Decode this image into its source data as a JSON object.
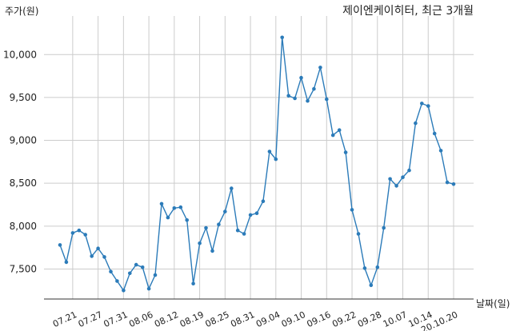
{
  "chart_data": {
    "type": "line",
    "title": "제이엔케이히터, 최근 3개월",
    "ylabel": "주가(원)",
    "xlabel": "날짜(일)",
    "ylim": [
      7150,
      10450
    ],
    "yticks": [
      7500,
      8000,
      8500,
      9000,
      9500,
      10000
    ],
    "ytick_labels": [
      "7,500",
      "8,000",
      "8,500",
      "9,000",
      "9,500",
      "10,000"
    ],
    "grid": true,
    "xtick_labels": [
      "07.21",
      "07.27",
      "07.31",
      "08.06",
      "08.12",
      "08.19",
      "08.25",
      "08.31",
      "09.04",
      "09.10",
      "09.16",
      "09.22",
      "09.28",
      "10.07",
      "10.14",
      "20.10.20"
    ],
    "xtick_positions": [
      2,
      6,
      10,
      14,
      18,
      22,
      26,
      30,
      34,
      38,
      42,
      46,
      50,
      54,
      58,
      62
    ],
    "line_color": "#2b7bb9",
    "values": [
      7780,
      7580,
      7920,
      7950,
      7900,
      7650,
      7740,
      7640,
      7470,
      7360,
      7250,
      7450,
      7550,
      7520,
      7270,
      7430,
      8260,
      8100,
      8210,
      8220,
      8070,
      7330,
      7800,
      7980,
      7710,
      8020,
      8170,
      8440,
      7950,
      7910,
      8130,
      8150,
      8290,
      8870,
      8780,
      10200,
      9520,
      9490,
      9730,
      9460,
      9600,
      9850,
      9480,
      9060,
      9120,
      8860,
      8190,
      7910,
      7510,
      7310,
      7520,
      7980,
      8550,
      8470,
      8570,
      8650,
      9200,
      9430,
      9400,
      9080,
      8880,
      8510,
      8490
    ]
  }
}
